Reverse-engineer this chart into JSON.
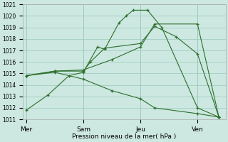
{
  "xlabel": "Pression niveau de la mer( hPa )",
  "bg_color": "#cce8e0",
  "grid_color": "#9cc8bc",
  "line_color": "#2d6e2d",
  "ylim": [
    1011,
    1021
  ],
  "yticks": [
    1011,
    1012,
    1013,
    1014,
    1015,
    1016,
    1017,
    1018,
    1019,
    1020,
    1021
  ],
  "x_labels": [
    "Mer",
    "Sam",
    "Jeu",
    "Ven"
  ],
  "x_ticks": [
    0,
    8,
    16,
    24
  ],
  "xlim": [
    -0.5,
    28
  ],
  "series": [
    {
      "x": [
        0,
        3,
        6,
        8,
        10,
        11,
        13,
        14,
        15,
        17,
        19,
        24,
        27
      ],
      "y": [
        1011.8,
        1013.1,
        1014.8,
        1015.1,
        1017.3,
        1017.1,
        1019.4,
        1020.0,
        1020.5,
        1020.5,
        1019.0,
        1012.0,
        1011.2
      ]
    },
    {
      "x": [
        0,
        4,
        8,
        9,
        11,
        16,
        18,
        21,
        24,
        27
      ],
      "y": [
        1014.8,
        1015.2,
        1015.2,
        1016.0,
        1017.2,
        1017.6,
        1019.1,
        1018.2,
        1016.7,
        1011.2
      ]
    },
    {
      "x": [
        0,
        4,
        8,
        12,
        16,
        18,
        24,
        27
      ],
      "y": [
        1014.8,
        1015.2,
        1015.3,
        1016.2,
        1017.3,
        1019.3,
        1019.3,
        1011.2
      ]
    },
    {
      "x": [
        0,
        4,
        8,
        12,
        16,
        18,
        24,
        27
      ],
      "y": [
        1014.8,
        1015.1,
        1014.5,
        1013.5,
        1012.8,
        1012.0,
        1011.5,
        1011.2
      ]
    }
  ]
}
